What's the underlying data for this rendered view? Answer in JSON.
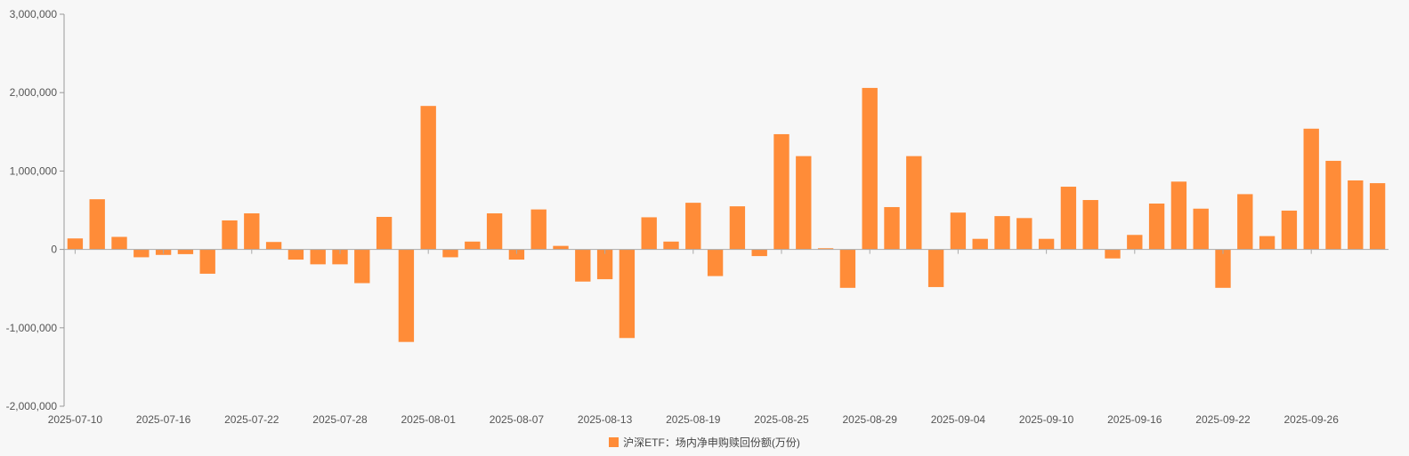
{
  "chart_data": {
    "type": "bar",
    "series": [
      {
        "name": "沪深ETF：场内净申购赎回份额(万份)",
        "color": "#ff8c38",
        "values": [
          140000,
          640000,
          160000,
          -100000,
          -70000,
          -60000,
          -310000,
          370000,
          460000,
          95000,
          -130000,
          -190000,
          -190000,
          -430000,
          415000,
          -1180000,
          1830000,
          -100000,
          100000,
          460000,
          -130000,
          510000,
          45000,
          -410000,
          -380000,
          -1130000,
          410000,
          100000,
          595000,
          -340000,
          550000,
          -85000,
          1470000,
          1190000,
          15000,
          -490000,
          2060000,
          540000,
          1190000,
          -480000,
          470000,
          135000,
          425000,
          400000,
          135000,
          800000,
          630000,
          -115000,
          185000,
          585000,
          865000,
          520000,
          -490000,
          705000,
          170000,
          495000,
          1540000,
          1130000,
          880000,
          845000
        ]
      }
    ],
    "x_tick_labels": [
      "2025-07-10",
      "2025-07-16",
      "2025-07-22",
      "2025-07-28",
      "2025-08-01",
      "2025-08-07",
      "2025-08-13",
      "2025-08-19",
      "2025-08-25",
      "2025-08-29",
      "2025-09-04",
      "2025-09-10",
      "2025-09-16",
      "2025-09-22",
      "2025-09-26"
    ],
    "x_tick_every": 4,
    "y_tick_labels": [
      "3,000,000",
      "2,000,000",
      "1,000,000",
      "0",
      "-1,000,000",
      "-2,000,000"
    ],
    "y_ticks": [
      3000000,
      2000000,
      1000000,
      0,
      -1000000,
      -2000000
    ],
    "ylim": [
      -2000000,
      3000000
    ],
    "grid": false,
    "legend_position": "bottom-center"
  }
}
